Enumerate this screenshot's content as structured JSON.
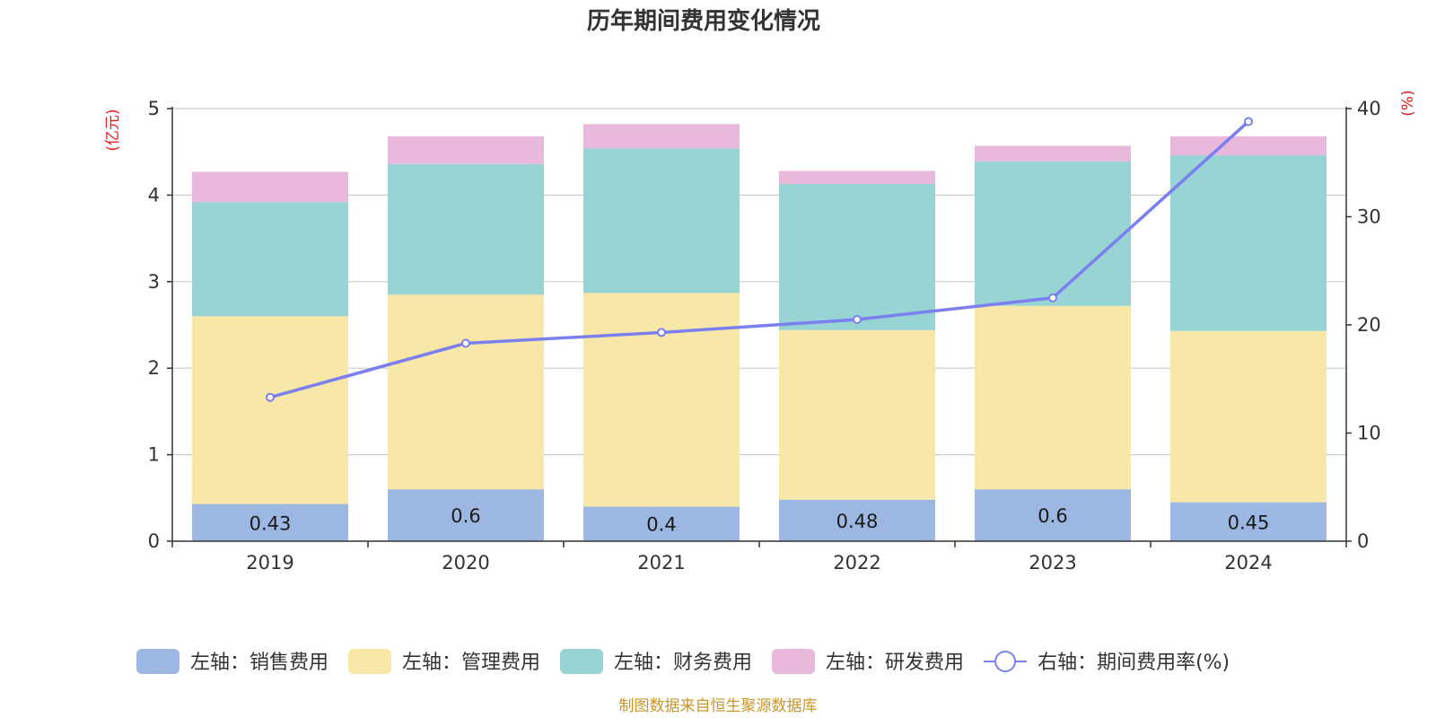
{
  "chart_data": {
    "type": "bar",
    "title": "历年期间费用变化情况",
    "categories": [
      "2019",
      "2020",
      "2021",
      "2022",
      "2023",
      "2024"
    ],
    "left_axis": {
      "unit_label": "(亿元)",
      "ylim": [
        0,
        5
      ],
      "ticks": [
        "0",
        "1",
        "2",
        "3",
        "4",
        "5"
      ]
    },
    "right_axis": {
      "unit_label": "(%)",
      "ylim": [
        0,
        40
      ],
      "ticks": [
        "0",
        "10",
        "20",
        "30",
        "40"
      ]
    },
    "grid": true,
    "legend_position": "bottom",
    "series": [
      {
        "name": "左轴：销售费用",
        "type": "bar",
        "axis": "left",
        "color": "#9cb8e2",
        "values": [
          0.43,
          0.6,
          0.4,
          0.48,
          0.6,
          0.45
        ],
        "data_labels": [
          "0.43",
          "0.6",
          "0.4",
          "0.48",
          "0.6",
          "0.45"
        ]
      },
      {
        "name": "左轴：管理费用",
        "type": "bar",
        "axis": "left",
        "color": "#f7e7a8",
        "values": [
          2.17,
          2.25,
          2.47,
          1.96,
          2.12,
          1.98
        ]
      },
      {
        "name": "左轴：财务费用",
        "type": "bar",
        "axis": "left",
        "color": "#98d4d4",
        "values": [
          1.32,
          1.51,
          1.67,
          1.69,
          1.67,
          2.03
        ]
      },
      {
        "name": "左轴：研发费用",
        "type": "bar",
        "axis": "left",
        "color": "#e8b9da",
        "values": [
          0.35,
          0.32,
          0.28,
          0.15,
          0.18,
          0.22
        ]
      },
      {
        "name": "右轴：期间费用率(%)",
        "type": "line",
        "axis": "right",
        "color": "#7b7ff0",
        "values": [
          13.3,
          18.3,
          19.3,
          20.5,
          22.5,
          38.8
        ]
      }
    ],
    "source": "制图数据来自恒生聚源数据库"
  }
}
